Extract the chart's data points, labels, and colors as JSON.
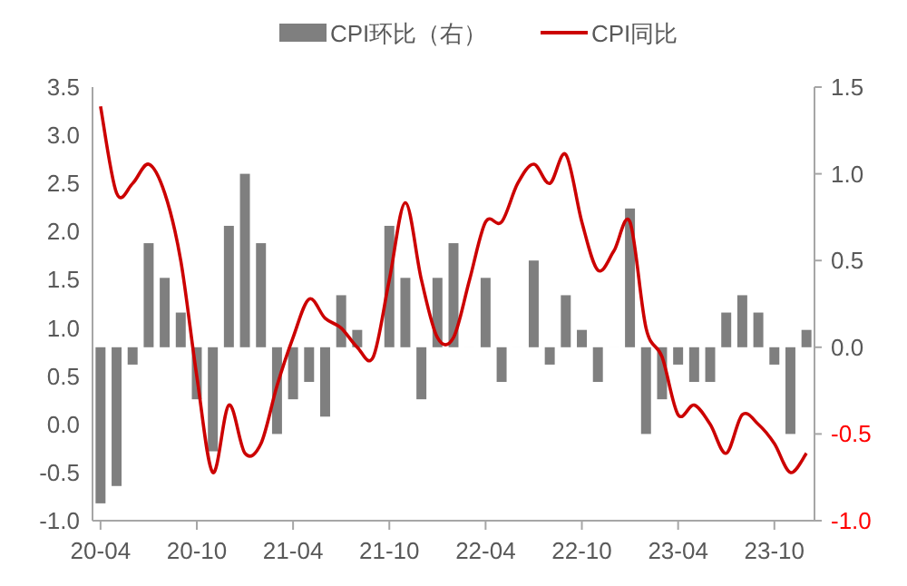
{
  "chart_data": {
    "type": "bar",
    "legend": "top",
    "categories": [
      "20-04",
      null,
      null,
      null,
      null,
      null,
      "20-10",
      null,
      null,
      null,
      null,
      null,
      "21-04",
      null,
      null,
      null,
      null,
      null,
      "21-10",
      null,
      null,
      null,
      null,
      null,
      "22-04",
      null,
      null,
      null,
      null,
      null,
      "22-10",
      null,
      null,
      null,
      null,
      null,
      "23-04",
      null,
      null,
      null,
      null,
      null,
      "23-10",
      null,
      null
    ],
    "series": [
      {
        "name": "CPI环比（右）",
        "axis": "y2",
        "color": "#7f7f7f",
        "values": [
          -0.9,
          -0.8,
          -0.1,
          0.6,
          0.4,
          0.2,
          -0.3,
          -0.6,
          0.7,
          1.0,
          0.6,
          -0.5,
          -0.3,
          -0.2,
          -0.4,
          0.3,
          0.1,
          0.0,
          0.7,
          0.4,
          -0.3,
          0.4,
          0.6,
          0.0,
          0.4,
          -0.2,
          0.0,
          0.5,
          -0.1,
          0.3,
          0.1,
          -0.2,
          0.0,
          0.8,
          -0.5,
          -0.3,
          -0.1,
          -0.2,
          -0.2,
          0.2,
          0.3,
          0.2,
          -0.1,
          -0.5,
          0.1
        ]
      },
      {
        "name": "CPI同比",
        "type": "line",
        "color": "#cc0000",
        "values": [
          3.3,
          2.4,
          2.5,
          2.7,
          2.4,
          1.7,
          0.5,
          -0.5,
          0.2,
          -0.3,
          -0.2,
          0.4,
          0.9,
          1.3,
          1.1,
          1.0,
          0.8,
          0.7,
          1.5,
          2.3,
          1.5,
          0.9,
          0.9,
          1.5,
          2.1,
          2.1,
          2.5,
          2.7,
          2.5,
          2.8,
          2.1,
          1.6,
          1.8,
          2.1,
          1.0,
          0.7,
          0.1,
          0.2,
          0.0,
          -0.3,
          0.1,
          0.0,
          -0.2,
          -0.5,
          -0.3
        ]
      }
    ],
    "ylim": [
      -1.0,
      3.5
    ],
    "yticks": [
      {
        "value": -1,
        "label": "-1.0"
      },
      -0.5,
      {
        "value": 0,
        "label": "0.0"
      },
      0.5,
      {
        "value": 1,
        "label": "1.0"
      },
      1.5,
      {
        "value": 2,
        "label": "2.0"
      },
      2.5,
      {
        "value": 3,
        "label": "3.0"
      },
      3.5
    ],
    "y2lim": [
      -1.0,
      1.5
    ],
    "y2ticks": [
      {
        "value": -1,
        "label": "-1.0"
      },
      -0.5,
      {
        "value": 0,
        "label": "0.0"
      },
      0.5,
      {
        "value": 1,
        "label": "1.0"
      },
      1.5
    ]
  }
}
